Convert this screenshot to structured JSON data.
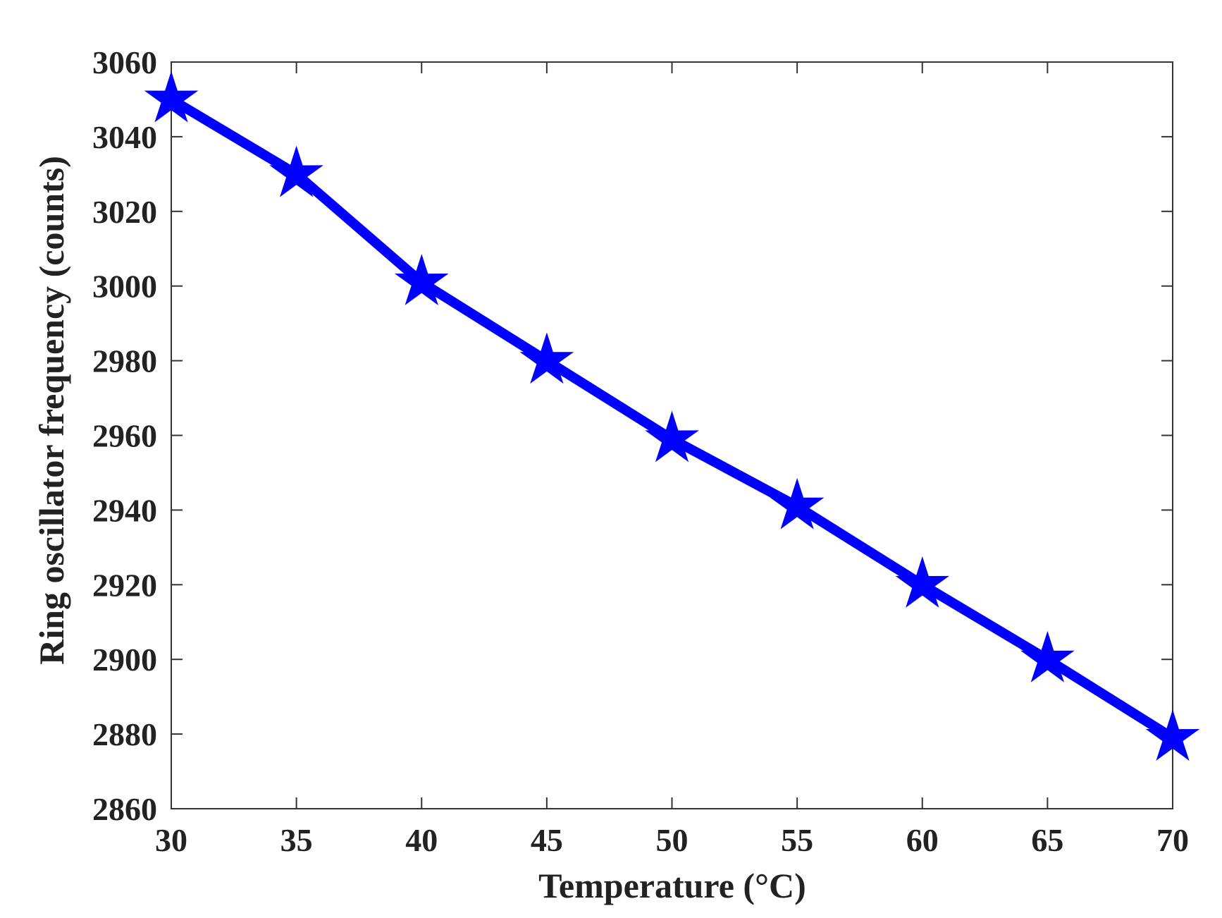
{
  "chart_data": {
    "type": "line",
    "title": "",
    "xlabel": "Temperature (°C)",
    "ylabel": "Ring oscillator frequency (counts)",
    "xlim": [
      30,
      70
    ],
    "ylim": [
      2860,
      3060
    ],
    "xticks": [
      30,
      35,
      40,
      45,
      50,
      55,
      60,
      65,
      70
    ],
    "yticks": [
      2860,
      2880,
      2900,
      2920,
      2940,
      2960,
      2980,
      3000,
      3020,
      3040,
      3060
    ],
    "grid": false,
    "legend": "none",
    "series": [
      {
        "color": "#0000ff",
        "marker": "star",
        "x": [
          30,
          35,
          40,
          45,
          50,
          55,
          60,
          65,
          70
        ],
        "y": [
          3050,
          3030,
          3001,
          2980,
          2959,
          2941,
          2920,
          2900,
          2879
        ]
      }
    ]
  }
}
